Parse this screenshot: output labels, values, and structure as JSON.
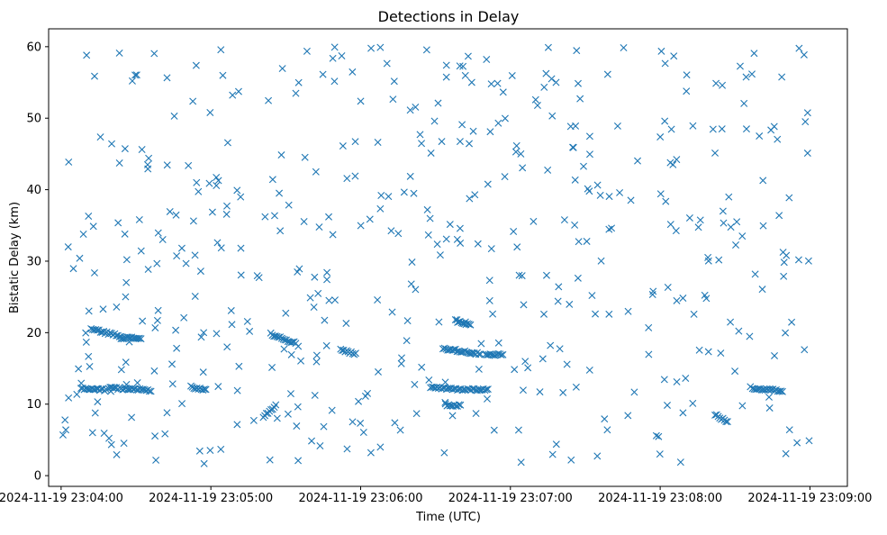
{
  "chart_data": {
    "type": "scatter",
    "title": "Detections in Delay",
    "xlabel": "Time (UTC)",
    "ylabel": "Bistatic Delay (km)",
    "marker": "x",
    "color": "#1f77b4",
    "grid": false,
    "legend": "none",
    "x_type": "time",
    "x_range": [
      "2024-11-19 23:03:55",
      "2024-11-19 23:09:15"
    ],
    "ylim": [
      -1.5,
      62.5
    ],
    "x_ticks": [
      "2024-11-19 23:04:00",
      "2024-11-19 23:05:00",
      "2024-11-19 23:06:00",
      "2024-11-19 23:07:00",
      "2024-11-19 23:08:00",
      "2024-11-19 23:09:00"
    ],
    "y_ticks": [
      0,
      10,
      20,
      30,
      40,
      50,
      60
    ],
    "time_span": [
      "2024-11-19 23:04:00",
      "2024-11-19 23:09:00"
    ],
    "tracks": [
      {
        "from": "2024-11-19 23:04:12",
        "to": "2024-11-19 23:04:24",
        "y": [
          20.5,
          19.5
        ]
      },
      {
        "from": "2024-11-19 23:04:24",
        "to": "2024-11-19 23:04:32",
        "y": [
          19.3,
          19.2
        ]
      },
      {
        "from": "2024-11-19 23:04:19",
        "to": "2024-11-19 23:04:36",
        "y": [
          12.3,
          11.9
        ]
      },
      {
        "from": "2024-11-19 23:04:08",
        "to": "2024-11-19 23:04:18",
        "y": [
          12.2,
          12.0
        ]
      },
      {
        "from": "2024-11-19 23:04:52",
        "to": "2024-11-19 23:04:58",
        "y": [
          12.4,
          12.0
        ]
      },
      {
        "from": "2024-11-19 23:05:24",
        "to": "2024-11-19 23:05:34",
        "y": [
          19.8,
          18.5
        ]
      },
      {
        "from": "2024-11-19 23:05:52",
        "to": "2024-11-19 23:05:58",
        "y": [
          17.6,
          17.0
        ]
      },
      {
        "from": "2024-11-19 23:06:33",
        "to": "2024-11-19 23:06:48",
        "y": [
          17.8,
          17.0
        ]
      },
      {
        "from": "2024-11-19 23:06:28",
        "to": "2024-11-19 23:06:42",
        "y": [
          12.3,
          12.0
        ]
      },
      {
        "from": "2024-11-19 23:06:43",
        "to": "2024-11-19 23:06:51",
        "y": [
          12.1,
          12.0
        ]
      },
      {
        "from": "2024-11-19 23:06:50",
        "to": "2024-11-19 23:06:57",
        "y": [
          17.0,
          16.9
        ]
      },
      {
        "from": "2024-11-19 23:06:34",
        "to": "2024-11-19 23:06:40",
        "y": [
          9.9,
          9.8
        ]
      },
      {
        "from": "2024-11-19 23:06:38",
        "to": "2024-11-19 23:06:44",
        "y": [
          21.8,
          21.0
        ]
      },
      {
        "from": "2024-11-19 23:08:37",
        "to": "2024-11-19 23:08:49",
        "y": [
          12.2,
          11.9
        ]
      },
      {
        "from": "2024-11-19 23:08:22",
        "to": "2024-11-19 23:08:27",
        "y": [
          8.5,
          7.5
        ]
      },
      {
        "from": "2024-11-19 23:05:21",
        "to": "2024-11-19 23:05:26",
        "y": [
          8.3,
          9.8
        ]
      }
    ],
    "scattered_points": {
      "count": 480,
      "x_range": [
        "2024-11-19 23:04:00",
        "2024-11-19 23:09:00"
      ],
      "y_range": [
        1.5,
        60
      ],
      "distribution": "approximately uniform"
    }
  }
}
